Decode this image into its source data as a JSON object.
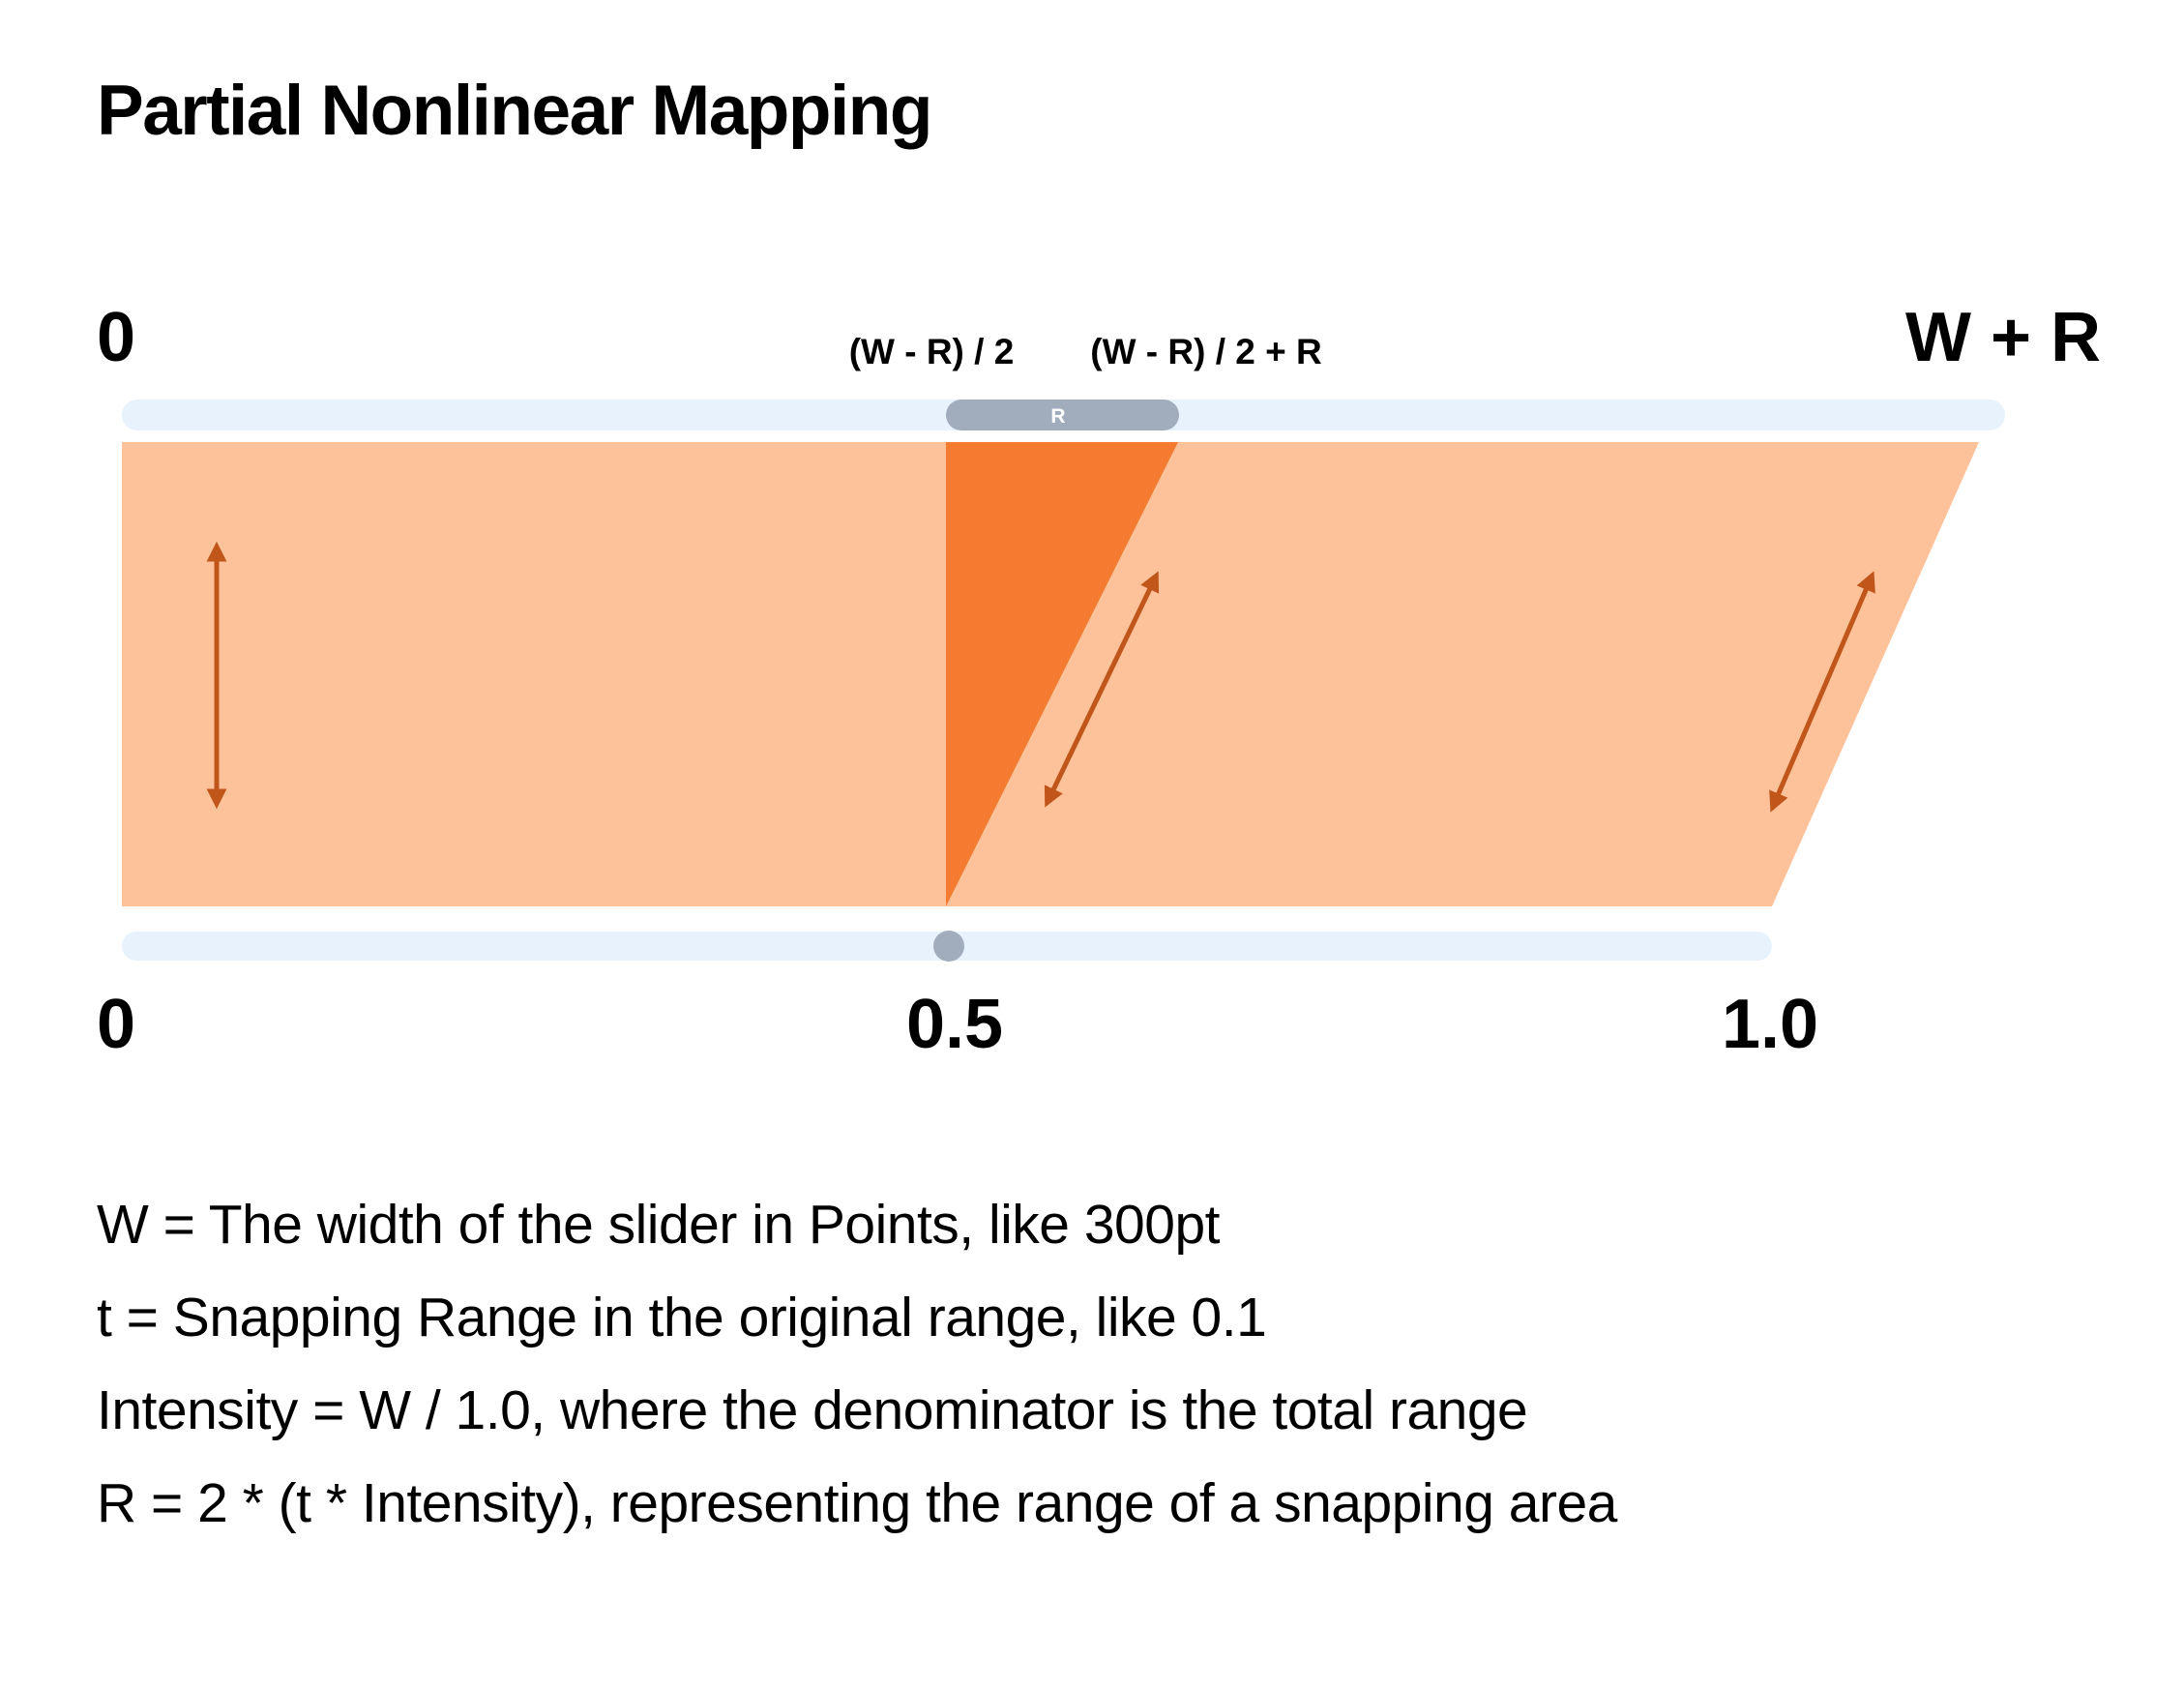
{
  "title": "Partial Nonlinear Mapping",
  "top_axis": {
    "start_label": "0",
    "end_label": "W + R",
    "snap_start_label": "(W - R) / 2",
    "snap_end_label": "(W - R) / 2 + R",
    "snap_range_label": "R"
  },
  "bottom_axis": {
    "start_label": "0",
    "mid_label": "0.5",
    "end_label": "1.0"
  },
  "definitions": [
    "W = The width of the slider in Points, like 300pt",
    "t = Snapping Range in the original range, like 0.1",
    "Intensity = W / 1.0, where the denominator is the total range",
    "R = 2 * (t * Intensity), representing the range of a snapping area"
  ],
  "colors": {
    "track": "#e8f2fd",
    "range_pill": "#a1adbd",
    "handle": "#a1adbd",
    "mapping_fill": "#fec29b",
    "snap_fill": "#f47b30",
    "arrow": "#c1561a",
    "text": "#000000"
  }
}
